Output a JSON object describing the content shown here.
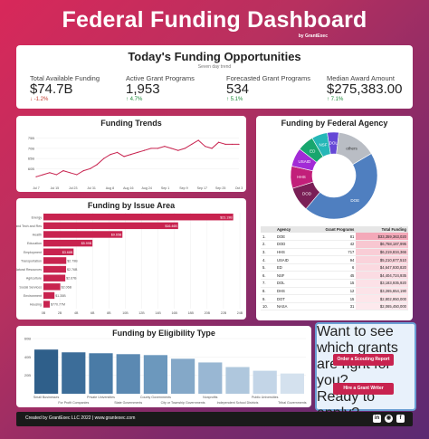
{
  "header": {
    "title": "Federal Funding Dashboard",
    "byline": "by GrantExec"
  },
  "kpi": {
    "title": "Today's Funding Opportunities",
    "subtitle": "Seven day trend",
    "items": [
      {
        "label": "Total Available Funding",
        "value": "$74.7B",
        "change": "↓ -1.2%",
        "dir": "neg"
      },
      {
        "label": "Active Grant Programs",
        "value": "1,953",
        "change": "↑ 4.7%",
        "dir": "pos"
      },
      {
        "label": "Forecasted Grant Programs",
        "value": "534",
        "change": "↑ 5.1%",
        "dir": "pos"
      },
      {
        "label": "Median Award Amount",
        "value": "$275,383.00",
        "change": "↑ 7.1%",
        "dir": "pos"
      }
    ]
  },
  "trends": {
    "title": "Funding Trends"
  },
  "agency_chart": {
    "title": "Funding by Federal Agency"
  },
  "issue": {
    "title": "Funding by Issue Area"
  },
  "eligibility": {
    "title": "Funding by Eligibility Type"
  },
  "agency_table": {
    "headers": [
      "Agency",
      "Grant Programs",
      "Total Funding"
    ],
    "rows": [
      {
        "idx": "1.",
        "agency": "DOE",
        "programs": "81",
        "funding": "$33,359,363,020"
      },
      {
        "idx": "2.",
        "agency": "DOD",
        "programs": "42",
        "funding": "$6,758,187,995"
      },
      {
        "idx": "3.",
        "agency": "HHS",
        "programs": "717",
        "funding": "$6,219,834,366"
      },
      {
        "idx": "4.",
        "agency": "USAID",
        "programs": "94",
        "funding": "$5,210,677,510"
      },
      {
        "idx": "5.",
        "agency": "ED",
        "programs": "6",
        "funding": "$4,647,930,820"
      },
      {
        "idx": "6.",
        "agency": "NSF",
        "programs": "45",
        "funding": "$4,404,724,935"
      },
      {
        "idx": "7.",
        "agency": "DOL",
        "programs": "15",
        "funding": "$3,183,935,920"
      },
      {
        "idx": "8.",
        "agency": "DHS",
        "programs": "12",
        "funding": "$3,265,654,190"
      },
      {
        "idx": "9.",
        "agency": "DOT",
        "programs": "15",
        "funding": "$2,802,950,000"
      },
      {
        "idx": "10.",
        "agency": "NASA",
        "programs": "31",
        "funding": "$2,065,450,000"
      }
    ]
  },
  "cta": {
    "question1": "Want to see which grants are right for you?",
    "button1": "Order a Scouting Report",
    "question2": "Ready to apply?",
    "button2": "Hire a Grant Writer"
  },
  "footer": {
    "text": "Created by GrantExec LLC 2022  |  www.grantexec.com"
  },
  "chart_data": [
    {
      "type": "line",
      "title": "Funding Trends",
      "x": [
        "Jul 7",
        "Jul 10",
        "Jul 13",
        "Jul 16",
        "Jul 19",
        "Jul 22",
        "Jul 25",
        "Jul 28",
        "Jul 31",
        "Aug 3",
        "Aug 6",
        "Aug 9",
        "Aug 12",
        "Aug 15",
        "Aug 18",
        "Aug 21",
        "Aug 24",
        "Aug 27",
        "Aug 30",
        "Sep 2",
        "Sep 5",
        "Sep 8",
        "Sep 11",
        "Sep 14",
        "Sep 17",
        "Sep 20",
        "Sep 23",
        "Sep 26",
        "Sep 29",
        "Oct 2",
        "Oct 5"
      ],
      "values": [
        56,
        57,
        58,
        57,
        59,
        58,
        57,
        59,
        60,
        62,
        65,
        67,
        68,
        66,
        67,
        68,
        69,
        70,
        70,
        71,
        70,
        69,
        70,
        72,
        74,
        71,
        70,
        73,
        72,
        72,
        72
      ],
      "xticks": [
        "Jul 7",
        "Jul 15",
        "Jul 23",
        "Jul 31",
        "Aug 8",
        "Aug 16",
        "Aug 24",
        "Sep 1",
        "Sep 9",
        "Sep 17",
        "Sep 25",
        "Oct 3"
      ],
      "yticks": [
        "60B",
        "65B",
        "70B",
        "75B"
      ],
      "ylim": [
        53,
        78
      ]
    },
    {
      "type": "pie",
      "title": "Funding by Federal Agency",
      "labels": [
        "DOE",
        "DOD",
        "HHS",
        "USAID",
        "ED",
        "NSF",
        "DOL",
        "others"
      ],
      "values": [
        33.4,
        6.8,
        6.2,
        5.2,
        4.6,
        4.4,
        3.2,
        11.0
      ],
      "colors": [
        "#4f7fc0",
        "#7a1f56",
        "#c21f7a",
        "#a22bd6",
        "#18a66e",
        "#25b7b7",
        "#6547d6",
        "#b9bdc4"
      ]
    },
    {
      "type": "bar",
      "title": "Funding by Issue Area",
      "orientation": "horizontal",
      "categories": [
        "Energy",
        "Science and Tech and Res",
        "Health",
        "Education",
        "Employment",
        "Transportation",
        "Natural Resources",
        "Agriculture",
        "Social Services",
        "Environment",
        "Housing"
      ],
      "values": [
        23.19,
        16.46,
        9.65,
        5.99,
        3.68,
        2.79,
        2.76,
        2.67,
        2.06,
        1.35,
        0.77
      ],
      "labels": [
        "$23.19B",
        "$16.46B",
        "$9.65B",
        "$5.99B",
        "$3.68B",
        "$2.79B",
        "$2.76B",
        "$2.67B",
        "$2.06B",
        "$1.35B",
        "$770.77M"
      ],
      "xticks": [
        "0B",
        "2B",
        "4B",
        "6B",
        "8B",
        "10B",
        "12B",
        "14B",
        "16B",
        "18B",
        "20B",
        "22B",
        "24B"
      ],
      "xlim": [
        0,
        24
      ]
    },
    {
      "type": "bar",
      "title": "Funding by Eligibility Type",
      "categories": [
        "Small Businesses",
        "For Profit Companies",
        "Private Universities",
        "State Governments",
        "County Governments",
        "City or Township Governments",
        "Nonprofits",
        "Independent School Districts",
        "Public Universities",
        "Tribal Governments"
      ],
      "values": [
        48,
        45,
        44,
        43,
        42,
        38,
        34,
        29,
        25,
        22
      ],
      "yticks": [
        "20B",
        "40B",
        "60B"
      ],
      "ylim": [
        0,
        60
      ]
    }
  ]
}
